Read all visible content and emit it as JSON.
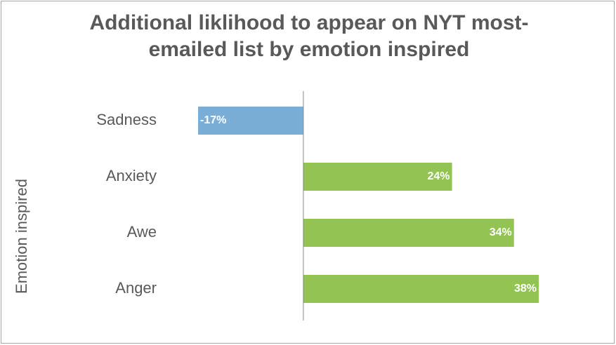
{
  "chart_data": {
    "type": "bar",
    "orientation": "horizontal",
    "title": "Additional liklihood to appear on NYT most-emailed list by emotion inspired",
    "y_label": "Emotion inspired",
    "categories": [
      "Sadness",
      "Anxiety",
      "Awe",
      "Anger"
    ],
    "values": [
      -17,
      24,
      34,
      38
    ],
    "value_labels": [
      "-17%",
      "24%",
      "34%",
      "38%"
    ],
    "colors": [
      "#7baed6",
      "#92c353",
      "#92c353",
      "#92c353"
    ]
  }
}
